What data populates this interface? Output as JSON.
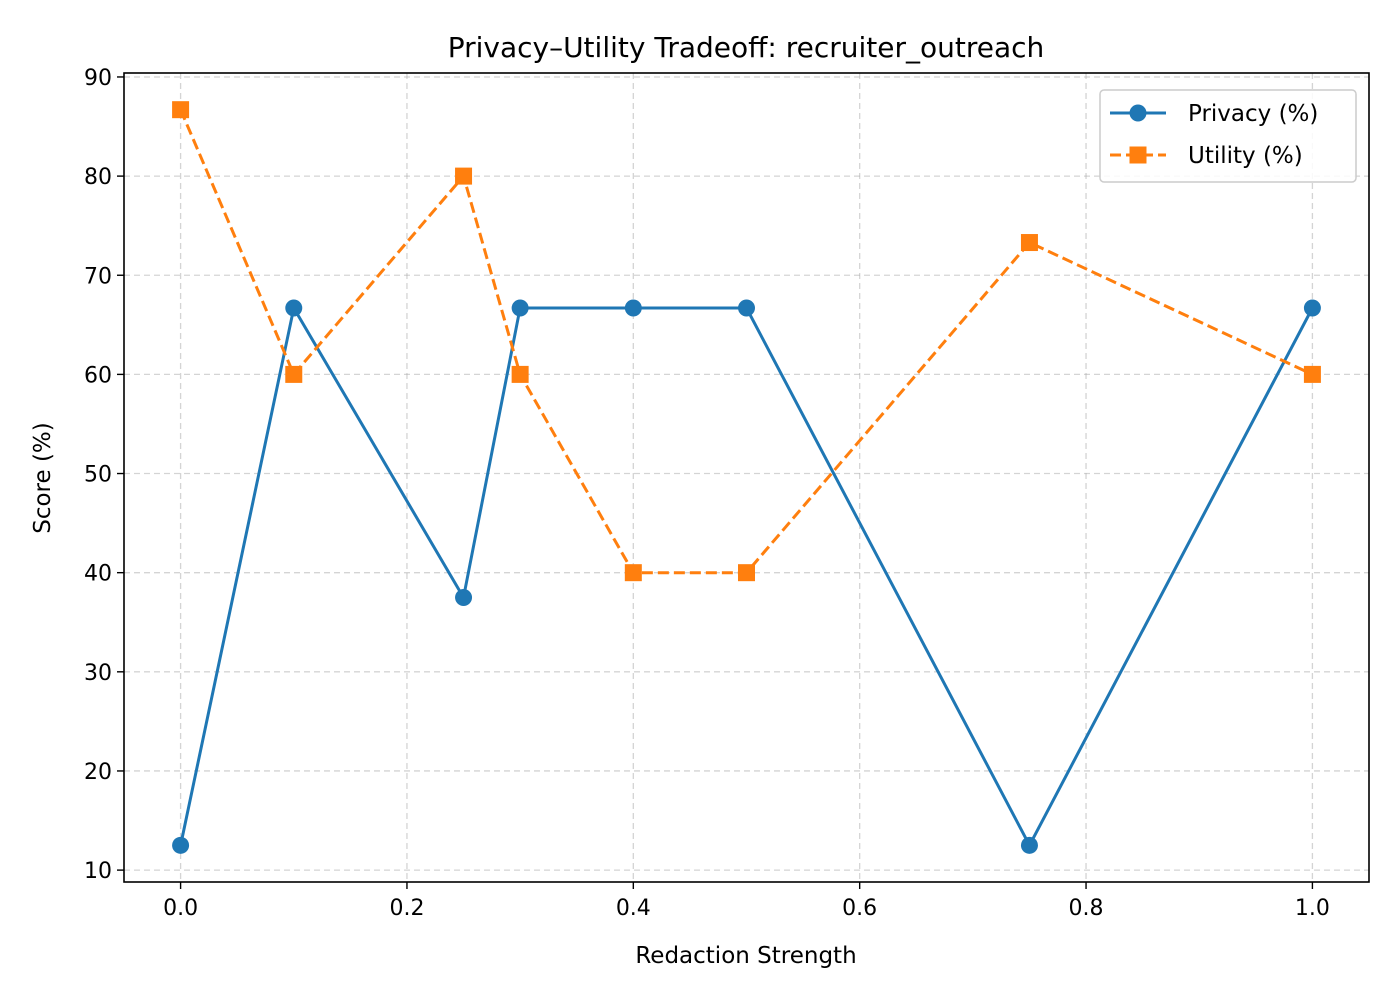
{
  "chart_data": {
    "type": "line",
    "title": "Privacy–Utility Tradeoff: recruiter_outreach",
    "xlabel": "Redaction Strength",
    "ylabel": "Score (%)",
    "xlim": [
      -0.05,
      1.05
    ],
    "ylim": [
      8.8,
      90.4
    ],
    "xticks": [
      0.0,
      0.2,
      0.4,
      0.6,
      0.8,
      1.0
    ],
    "xtick_labels": [
      "0.0",
      "0.2",
      "0.4",
      "0.6",
      "0.8",
      "1.0"
    ],
    "yticks": [
      10,
      20,
      30,
      40,
      50,
      60,
      70,
      80,
      90
    ],
    "ytick_labels": [
      "10",
      "20",
      "30",
      "40",
      "50",
      "60",
      "70",
      "80",
      "90"
    ],
    "grid": true,
    "legend_position": "top-right",
    "x": [
      0.0,
      0.1,
      0.25,
      0.3,
      0.4,
      0.5,
      0.75,
      1.0
    ],
    "series": [
      {
        "name": "Privacy (%)",
        "values": [
          12.5,
          66.7,
          37.5,
          66.7,
          66.7,
          66.7,
          12.5,
          66.7
        ],
        "color": "#1f77b4",
        "line_style": "solid",
        "marker": "circle"
      },
      {
        "name": "Utility (%)",
        "values": [
          86.7,
          60.0,
          80.0,
          60.0,
          40.0,
          40.0,
          73.3,
          60.0
        ],
        "color": "#ff7f0e",
        "line_style": "dashed",
        "marker": "square"
      }
    ]
  }
}
